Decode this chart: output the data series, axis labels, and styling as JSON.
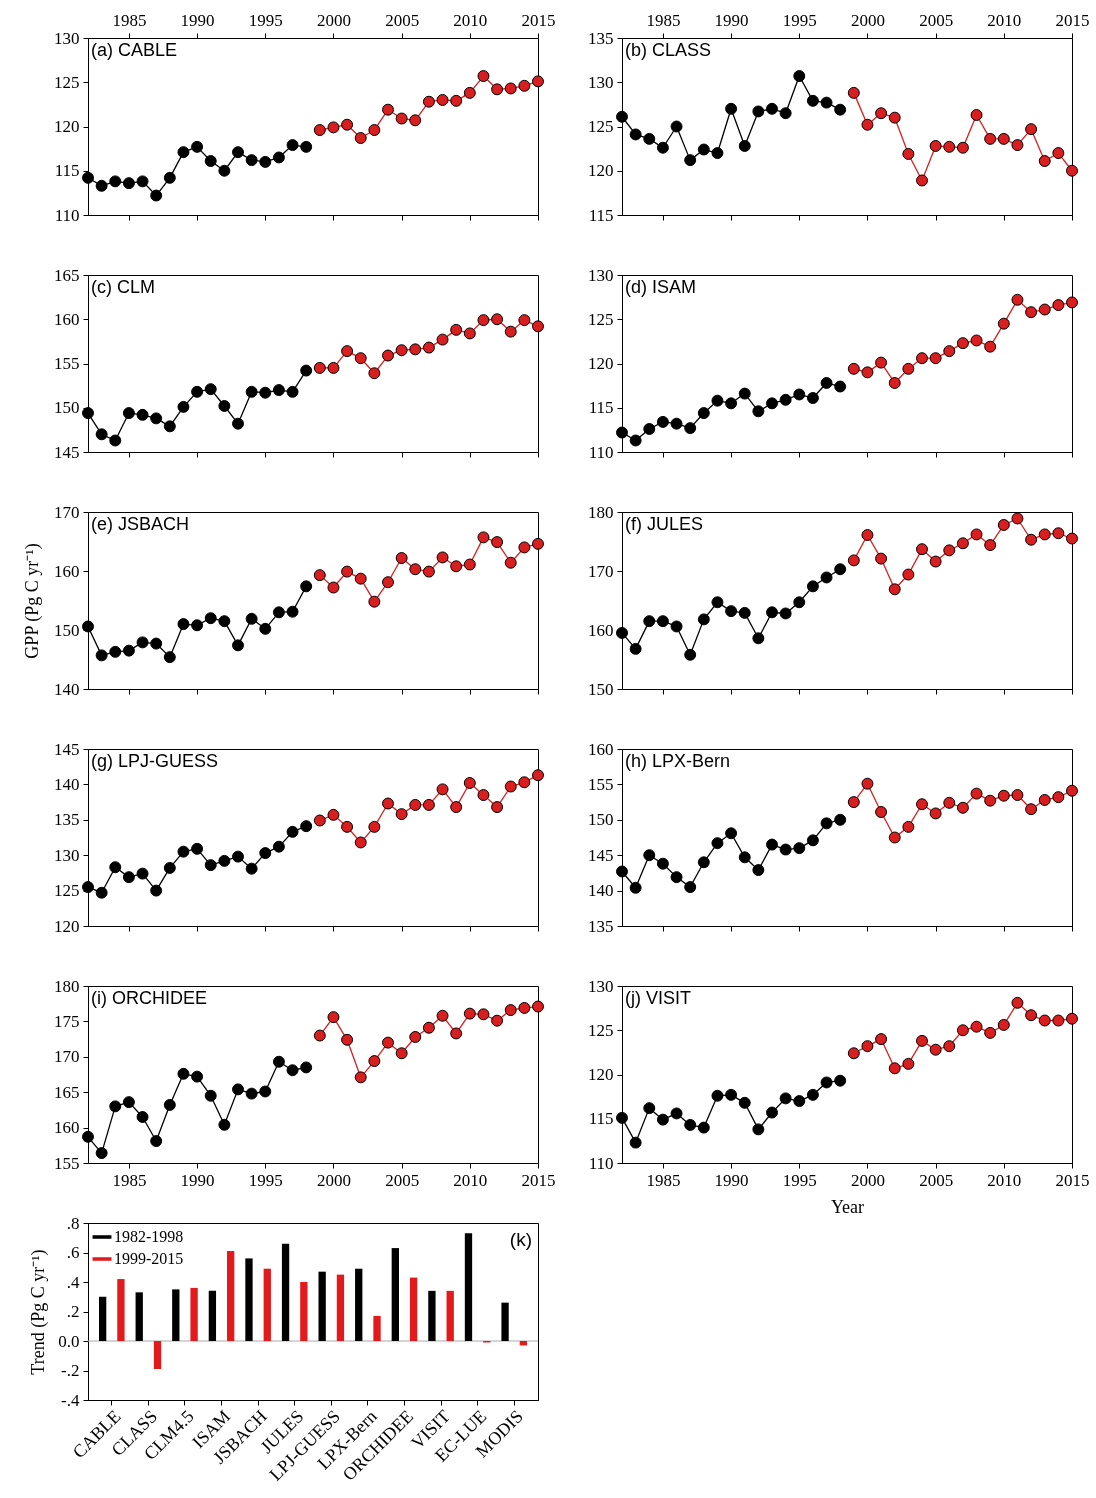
{
  "chart_data": [
    {
      "type": "line",
      "title": "(a) CABLE",
      "xlim": [
        1982,
        2015
      ],
      "xticks": [
        1985,
        1990,
        1995,
        2000,
        2005,
        2010,
        2015
      ],
      "tick_labels": "y",
      "x2lim": [
        1982,
        2015
      ],
      "x2ticks": [
        1985,
        1990,
        1995,
        2000,
        2005,
        2010,
        2015
      ],
      "ylim": [
        110,
        130
      ],
      "yticks": [
        110,
        115,
        120,
        125,
        130
      ],
      "marker": "circle",
      "series": [
        {
          "color": "#000000",
          "x": [
            1982,
            1983,
            1984,
            1985,
            1986,
            1987,
            1988,
            1989,
            1990,
            1991,
            1992,
            1993,
            1994,
            1995,
            1996,
            1997,
            1998
          ],
          "values": [
            114.2,
            113.3,
            113.8,
            113.6,
            113.8,
            112.2,
            114.2,
            117.1,
            117.7,
            116.1,
            115.0,
            117.1,
            116.2,
            116.0,
            116.5,
            117.9,
            117.7
          ]
        },
        {
          "color": "#d81e1e",
          "x": [
            1999,
            2000,
            2001,
            2002,
            2003,
            2004,
            2005,
            2006,
            2007,
            2008,
            2009,
            2010,
            2011,
            2012,
            2013,
            2014,
            2015
          ],
          "values": [
            119.6,
            119.9,
            120.2,
            118.7,
            119.6,
            121.9,
            120.9,
            120.7,
            122.8,
            123.0,
            122.9,
            123.8,
            125.7,
            124.2,
            124.3,
            124.6,
            125.1
          ]
        }
      ]
    },
    {
      "type": "line",
      "title": "(b) CLASS",
      "xlim": [
        1982,
        2015
      ],
      "xticks": [
        1985,
        1990,
        1995,
        2000,
        2005,
        2010,
        2015
      ],
      "tick_labels": "y",
      "x2lim": [
        1982,
        2015
      ],
      "x2ticks": [
        1985,
        1990,
        1995,
        2000,
        2005,
        2010,
        2015
      ],
      "ylim": [
        115,
        135
      ],
      "yticks": [
        115,
        120,
        125,
        130,
        135
      ],
      "marker": "circle",
      "series": [
        {
          "color": "#000000",
          "x": [
            1982,
            1983,
            1984,
            1985,
            1986,
            1987,
            1988,
            1989,
            1990,
            1991,
            1992,
            1993,
            1994,
            1995,
            1996,
            1997,
            1998
          ],
          "values": [
            126.1,
            124.1,
            123.6,
            122.6,
            125.0,
            121.2,
            122.4,
            122.0,
            127.0,
            122.8,
            126.7,
            127.0,
            126.5,
            130.7,
            127.9,
            127.7,
            126.9
          ]
        },
        {
          "color": "#d81e1e",
          "x": [
            1999,
            2000,
            2001,
            2002,
            2003,
            2004,
            2005,
            2006,
            2007,
            2008,
            2009,
            2010,
            2011,
            2012,
            2013,
            2014,
            2015
          ],
          "values": [
            128.8,
            125.2,
            126.5,
            126.0,
            121.9,
            118.9,
            122.8,
            122.7,
            122.6,
            126.3,
            123.6,
            123.6,
            122.9,
            124.7,
            121.1,
            122.0,
            120.0
          ]
        }
      ]
    },
    {
      "type": "line",
      "title": "(c) CLM",
      "xlim": [
        1982,
        2015
      ],
      "xticks": [
        1985,
        1990,
        1995,
        2000,
        2005,
        2010,
        2015
      ],
      "tick_labels": "y",
      "ylim": [
        145,
        165
      ],
      "yticks": [
        145,
        150,
        155,
        160,
        165
      ],
      "marker": "circle",
      "series": [
        {
          "color": "#000000",
          "x": [
            1982,
            1983,
            1984,
            1985,
            1986,
            1987,
            1988,
            1989,
            1990,
            1991,
            1992,
            1993,
            1994,
            1995,
            1996,
            1997,
            1998
          ],
          "values": [
            149.4,
            147.0,
            146.3,
            149.4,
            149.2,
            148.8,
            147.9,
            150.1,
            151.8,
            152.1,
            150.2,
            148.2,
            151.8,
            151.7,
            152.0,
            151.8,
            154.2
          ]
        },
        {
          "color": "#d81e1e",
          "x": [
            1999,
            2000,
            2001,
            2002,
            2003,
            2004,
            2005,
            2006,
            2007,
            2008,
            2009,
            2010,
            2011,
            2012,
            2013,
            2014,
            2015
          ],
          "values": [
            154.5,
            154.5,
            156.4,
            155.6,
            153.9,
            155.9,
            156.5,
            156.6,
            156.8,
            157.7,
            158.8,
            158.4,
            159.9,
            160.0,
            158.6,
            159.9,
            159.2
          ]
        }
      ]
    },
    {
      "type": "line",
      "title": "(d) ISAM",
      "xlim": [
        1982,
        2015
      ],
      "xticks": [
        1985,
        1990,
        1995,
        2000,
        2005,
        2010,
        2015
      ],
      "tick_labels": "y",
      "ylim": [
        110,
        130
      ],
      "yticks": [
        110,
        115,
        120,
        125,
        130
      ],
      "marker": "circle",
      "series": [
        {
          "color": "#000000",
          "x": [
            1982,
            1983,
            1984,
            1985,
            1986,
            1987,
            1988,
            1989,
            1990,
            1991,
            1992,
            1993,
            1994,
            1995,
            1996,
            1997,
            1998
          ],
          "values": [
            112.2,
            111.3,
            112.6,
            113.4,
            113.2,
            112.7,
            114.4,
            115.8,
            115.5,
            116.6,
            114.6,
            115.5,
            115.9,
            116.5,
            116.1,
            117.8,
            117.4
          ]
        },
        {
          "color": "#d81e1e",
          "x": [
            1999,
            2000,
            2001,
            2002,
            2003,
            2004,
            2005,
            2006,
            2007,
            2008,
            2009,
            2010,
            2011,
            2012,
            2013,
            2014,
            2015
          ],
          "values": [
            119.4,
            119.0,
            120.1,
            117.8,
            119.4,
            120.6,
            120.6,
            121.4,
            122.3,
            122.6,
            121.9,
            124.5,
            127.2,
            125.8,
            126.1,
            126.6,
            126.9
          ]
        }
      ]
    },
    {
      "type": "line",
      "title": "(e) JSBACH",
      "ylabel": "GPP (Pg C yr⁻¹)",
      "xlim": [
        1982,
        2015
      ],
      "xticks": [
        1985,
        1990,
        1995,
        2000,
        2005,
        2010,
        2015
      ],
      "tick_labels": "y",
      "ylim": [
        140,
        170
      ],
      "yticks": [
        140,
        150,
        160,
        170
      ],
      "marker": "circle",
      "series": [
        {
          "color": "#000000",
          "x": [
            1982,
            1983,
            1984,
            1985,
            1986,
            1987,
            1988,
            1989,
            1990,
            1991,
            1992,
            1993,
            1994,
            1995,
            1996,
            1997,
            1998
          ],
          "values": [
            150.6,
            145.7,
            146.3,
            146.5,
            147.9,
            147.7,
            145.4,
            151.0,
            150.8,
            152.0,
            151.5,
            147.4,
            151.9,
            150.2,
            153.0,
            153.1,
            157.4
          ]
        },
        {
          "color": "#d81e1e",
          "x": [
            1999,
            2000,
            2001,
            2002,
            2003,
            2004,
            2005,
            2006,
            2007,
            2008,
            2009,
            2010,
            2011,
            2012,
            2013,
            2014,
            2015
          ],
          "values": [
            159.3,
            157.2,
            159.9,
            158.7,
            154.8,
            158.1,
            162.2,
            160.3,
            159.9,
            162.3,
            160.8,
            161.1,
            165.7,
            164.9,
            161.4,
            164.0,
            164.6
          ]
        }
      ]
    },
    {
      "type": "line",
      "title": "(f) JULES",
      "xlim": [
        1982,
        2015
      ],
      "xticks": [
        1985,
        1990,
        1995,
        2000,
        2005,
        2010,
        2015
      ],
      "tick_labels": "y",
      "ylim": [
        150,
        180
      ],
      "yticks": [
        150,
        160,
        170,
        180
      ],
      "marker": "circle",
      "series": [
        {
          "color": "#000000",
          "x": [
            1982,
            1983,
            1984,
            1985,
            1986,
            1987,
            1988,
            1989,
            1990,
            1991,
            1992,
            1993,
            1994,
            1995,
            1996,
            1997,
            1998
          ],
          "values": [
            159.5,
            156.8,
            161.5,
            161.5,
            160.6,
            155.8,
            161.8,
            164.7,
            163.2,
            162.9,
            158.6,
            163.0,
            162.8,
            164.7,
            167.4,
            168.9,
            170.3
          ]
        },
        {
          "color": "#d81e1e",
          "x": [
            1999,
            2000,
            2001,
            2002,
            2003,
            2004,
            2005,
            2006,
            2007,
            2008,
            2009,
            2010,
            2011,
            2012,
            2013,
            2014,
            2015
          ],
          "values": [
            171.8,
            176.1,
            172.1,
            166.9,
            169.4,
            173.7,
            171.6,
            173.5,
            174.7,
            176.2,
            174.4,
            177.8,
            178.9,
            175.3,
            176.2,
            176.4,
            175.5
          ]
        }
      ]
    },
    {
      "type": "line",
      "title": "(g) LPJ-GUESS",
      "xlim": [
        1982,
        2015
      ],
      "xticks": [
        1985,
        1990,
        1995,
        2000,
        2005,
        2010,
        2015
      ],
      "tick_labels": "y",
      "ylim": [
        120,
        145
      ],
      "yticks": [
        120,
        125,
        130,
        135,
        140,
        145
      ],
      "marker": "circle",
      "series": [
        {
          "color": "#000000",
          "x": [
            1982,
            1983,
            1984,
            1985,
            1986,
            1987,
            1988,
            1989,
            1990,
            1991,
            1992,
            1993,
            1994,
            1995,
            1996,
            1997,
            1998
          ],
          "values": [
            125.5,
            124.7,
            128.3,
            126.9,
            127.4,
            125.0,
            128.2,
            130.5,
            130.9,
            128.6,
            129.2,
            129.8,
            128.1,
            130.3,
            131.2,
            133.3,
            134.1
          ]
        },
        {
          "color": "#d81e1e",
          "x": [
            1999,
            2000,
            2001,
            2002,
            2003,
            2004,
            2005,
            2006,
            2007,
            2008,
            2009,
            2010,
            2011,
            2012,
            2013,
            2014,
            2015
          ],
          "values": [
            134.9,
            135.7,
            134.0,
            131.8,
            134.0,
            137.3,
            135.8,
            137.1,
            137.1,
            139.3,
            136.8,
            140.2,
            138.5,
            136.8,
            139.7,
            140.3,
            141.3
          ]
        }
      ]
    },
    {
      "type": "line",
      "title": "(h) LPX-Bern",
      "xlim": [
        1982,
        2015
      ],
      "xticks": [
        1985,
        1990,
        1995,
        2000,
        2005,
        2010,
        2015
      ],
      "tick_labels": "y",
      "ylim": [
        135,
        160
      ],
      "yticks": [
        135,
        140,
        145,
        150,
        155,
        160
      ],
      "marker": "circle",
      "series": [
        {
          "color": "#000000",
          "x": [
            1982,
            1983,
            1984,
            1985,
            1986,
            1987,
            1988,
            1989,
            1990,
            1991,
            1992,
            1993,
            1994,
            1995,
            1996,
            1997,
            1998
          ],
          "values": [
            142.7,
            140.4,
            145.0,
            143.8,
            141.9,
            140.5,
            144.0,
            146.7,
            148.1,
            144.7,
            142.9,
            146.5,
            145.8,
            146.0,
            147.1,
            149.5,
            150.0
          ]
        },
        {
          "color": "#d81e1e",
          "x": [
            1999,
            2000,
            2001,
            2002,
            2003,
            2004,
            2005,
            2006,
            2007,
            2008,
            2009,
            2010,
            2011,
            2012,
            2013,
            2014,
            2015
          ],
          "values": [
            152.5,
            155.1,
            151.1,
            147.5,
            149.0,
            152.2,
            150.9,
            152.4,
            151.7,
            153.7,
            152.7,
            153.4,
            153.5,
            151.5,
            152.8,
            153.2,
            154.1
          ]
        }
      ]
    },
    {
      "type": "line",
      "title": "(i) ORCHIDEE",
      "xlim": [
        1982,
        2015
      ],
      "xticks": [
        1985,
        1990,
        1995,
        2000,
        2005,
        2010,
        2015
      ],
      "ylim": [
        155,
        180
      ],
      "yticks": [
        155,
        160,
        165,
        170,
        175,
        180
      ],
      "marker": "circle",
      "series": [
        {
          "color": "#000000",
          "x": [
            1982,
            1983,
            1984,
            1985,
            1986,
            1987,
            1988,
            1989,
            1990,
            1991,
            1992,
            1993,
            1994,
            1995,
            1996,
            1997,
            1998
          ],
          "values": [
            158.7,
            156.4,
            163.0,
            163.6,
            161.5,
            158.1,
            163.2,
            167.6,
            167.2,
            164.5,
            160.4,
            165.4,
            164.8,
            165.1,
            169.3,
            168.1,
            168.5
          ]
        },
        {
          "color": "#d81e1e",
          "x": [
            1999,
            2000,
            2001,
            2002,
            2003,
            2004,
            2005,
            2006,
            2007,
            2008,
            2009,
            2010,
            2011,
            2012,
            2013,
            2014,
            2015
          ],
          "values": [
            173.0,
            175.6,
            172.4,
            167.1,
            169.4,
            172.0,
            170.5,
            172.8,
            174.1,
            175.8,
            173.3,
            176.1,
            176.0,
            175.1,
            176.6,
            176.9,
            177.1
          ]
        }
      ]
    },
    {
      "type": "line",
      "title": "(j) VISIT",
      "xlabel": "Year",
      "xlim": [
        1982,
        2015
      ],
      "xticks": [
        1985,
        1990,
        1995,
        2000,
        2005,
        2010,
        2015
      ],
      "ylim": [
        110,
        130
      ],
      "yticks": [
        110,
        115,
        120,
        125,
        130
      ],
      "marker": "circle",
      "series": [
        {
          "color": "#000000",
          "x": [
            1982,
            1983,
            1984,
            1985,
            1986,
            1987,
            1988,
            1989,
            1990,
            1991,
            1992,
            1993,
            1994,
            1995,
            1996,
            1997,
            1998
          ],
          "values": [
            115.1,
            112.3,
            116.2,
            114.9,
            115.6,
            114.3,
            114.0,
            117.6,
            117.7,
            116.8,
            113.8,
            115.7,
            117.3,
            117.0,
            117.7,
            119.1,
            119.3
          ]
        },
        {
          "color": "#d81e1e",
          "x": [
            1999,
            2000,
            2001,
            2002,
            2003,
            2004,
            2005,
            2006,
            2007,
            2008,
            2009,
            2010,
            2011,
            2012,
            2013,
            2014,
            2015
          ],
          "values": [
            122.4,
            123.2,
            124.0,
            120.7,
            121.2,
            123.8,
            122.8,
            123.2,
            125.0,
            125.4,
            124.7,
            125.6,
            128.1,
            126.7,
            126.1,
            126.1,
            126.3
          ]
        }
      ]
    },
    {
      "type": "bar",
      "ylabel": "Trend (Pg C yr⁻¹)",
      "annotations": [
        "(k)"
      ],
      "legend": "top left",
      "categories": [
        "CABLE",
        "CLASS",
        "CLM4.5",
        "ISAM",
        "JSBACH",
        "JULES",
        "LPJ-GUESS",
        "LPX-Bern",
        "ORCHIDEE",
        "VISIT",
        "EC-LUE",
        "MODIS"
      ],
      "ylim": [
        -0.4,
        0.8
      ],
      "yticks": [
        {
          "value": -0.4,
          "label": "-.4"
        },
        {
          "value": -0.2,
          "label": "-.2"
        },
        {
          "value": 0,
          "label": "0.0"
        },
        {
          "value": 0.2,
          "label": ".2"
        },
        {
          "value": 0.4,
          "label": ".4"
        },
        {
          "value": 0.6,
          "label": ".6"
        },
        {
          "value": 0.8,
          "label": ".8"
        }
      ],
      "ref_lines": [
        {
          "axis": "y",
          "value": 0,
          "color": "#aaaaaa"
        }
      ],
      "series": [
        {
          "name": "1982-1998",
          "color": "#000000",
          "values": [
            0.3,
            0.33,
            0.35,
            0.34,
            0.56,
            0.66,
            0.47,
            0.49,
            0.63,
            0.34,
            0.73,
            0.26
          ]
        },
        {
          "name": "1999-2015",
          "color": "#e31a1c",
          "values": [
            0.42,
            -0.19,
            0.36,
            0.61,
            0.49,
            0.4,
            0.45,
            0.17,
            0.43,
            0.34,
            -0.01,
            -0.03
          ]
        }
      ]
    }
  ]
}
